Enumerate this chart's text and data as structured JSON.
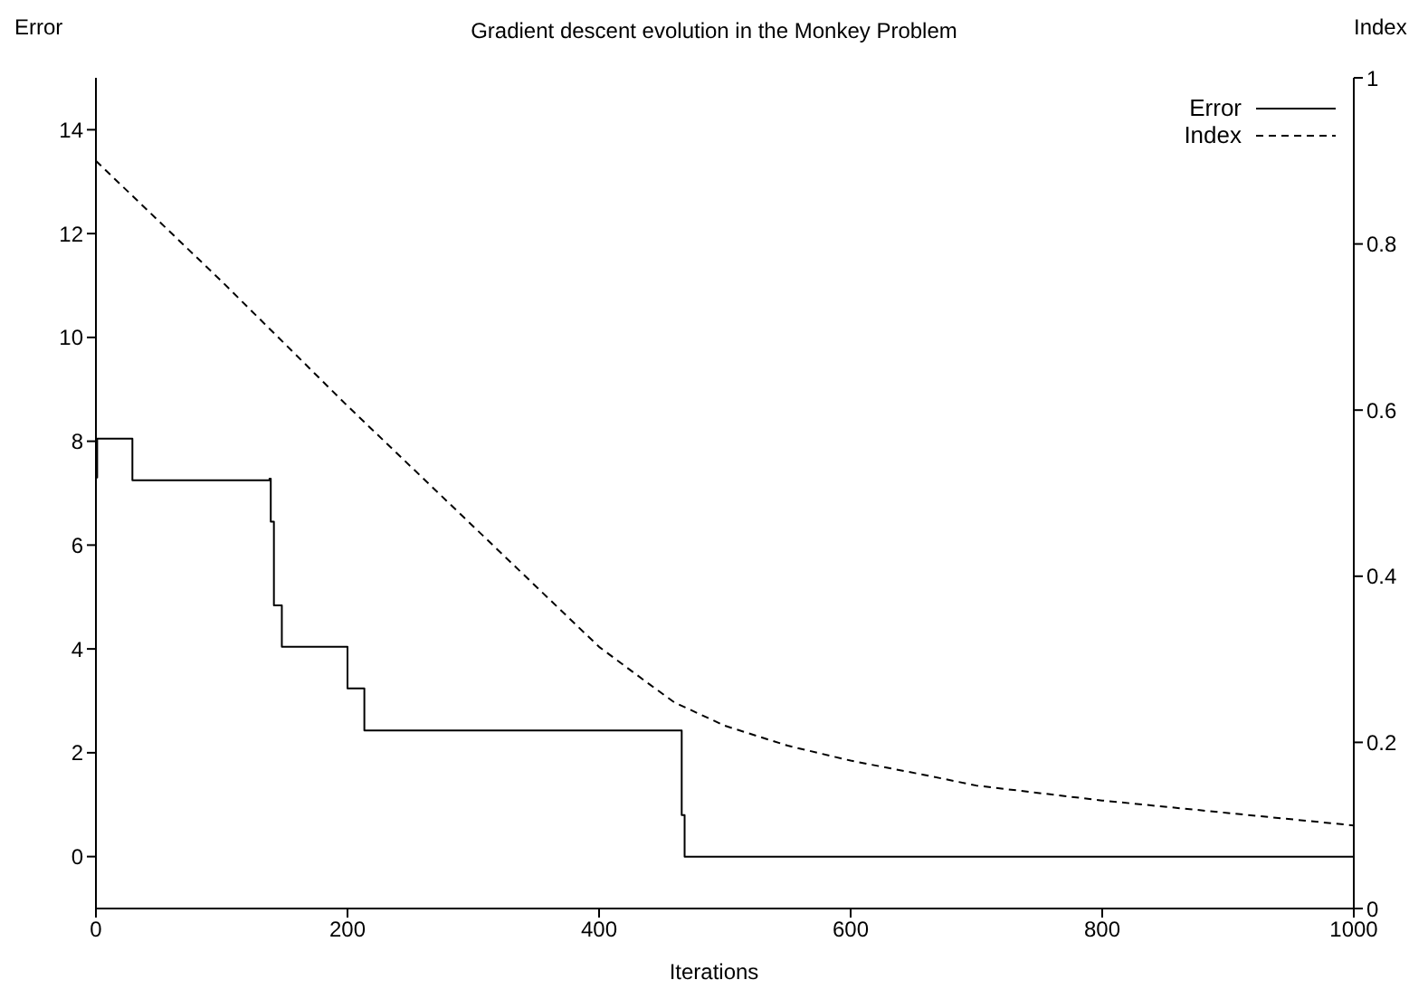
{
  "chart_data": {
    "type": "line",
    "title": "Gradient descent evolution in the Monkey Problem",
    "xlabel": "Iterations",
    "ylabel": "Error",
    "y2label": "Index",
    "series": [
      {
        "name": "Error",
        "type": "step",
        "color": "#000000",
        "line_style": "solid",
        "x": [
          0,
          1,
          29,
          138,
          139,
          141.5,
          147.8,
          200,
          213.4,
          465.7,
          468,
          1000
        ],
        "values": [
          7.3,
          8.05,
          7.25,
          7.28,
          6.45,
          4.84,
          4.04,
          3.24,
          2.43,
          0.8,
          0,
          0
        ]
      },
      {
        "name": "Index",
        "type": "line",
        "axis": "y2",
        "color": "#000000",
        "line_style": "dashed",
        "x": [
          0,
          100,
          200,
          300,
          400,
          440,
          460,
          500,
          550,
          600,
          658,
          700,
          800,
          900,
          1000
        ],
        "values": [
          0.9,
          0.755,
          0.605,
          0.46,
          0.315,
          0.27,
          0.248,
          0.22,
          0.196,
          0.178,
          0.161,
          0.148,
          0.13,
          0.115,
          0.1
        ]
      }
    ],
    "xlim": [
      0,
      1000
    ],
    "xticks": [
      0,
      200,
      400,
      600,
      800,
      1000
    ],
    "ylim": [
      -1,
      15
    ],
    "yticks": [
      0,
      2,
      4,
      6,
      8,
      10,
      12,
      14
    ],
    "y2lim": [
      0,
      1
    ],
    "y2ticks": [
      0,
      0.2,
      0.4,
      0.6,
      0.8,
      1
    ],
    "legend": "top right",
    "grid": false,
    "marker": "none"
  }
}
